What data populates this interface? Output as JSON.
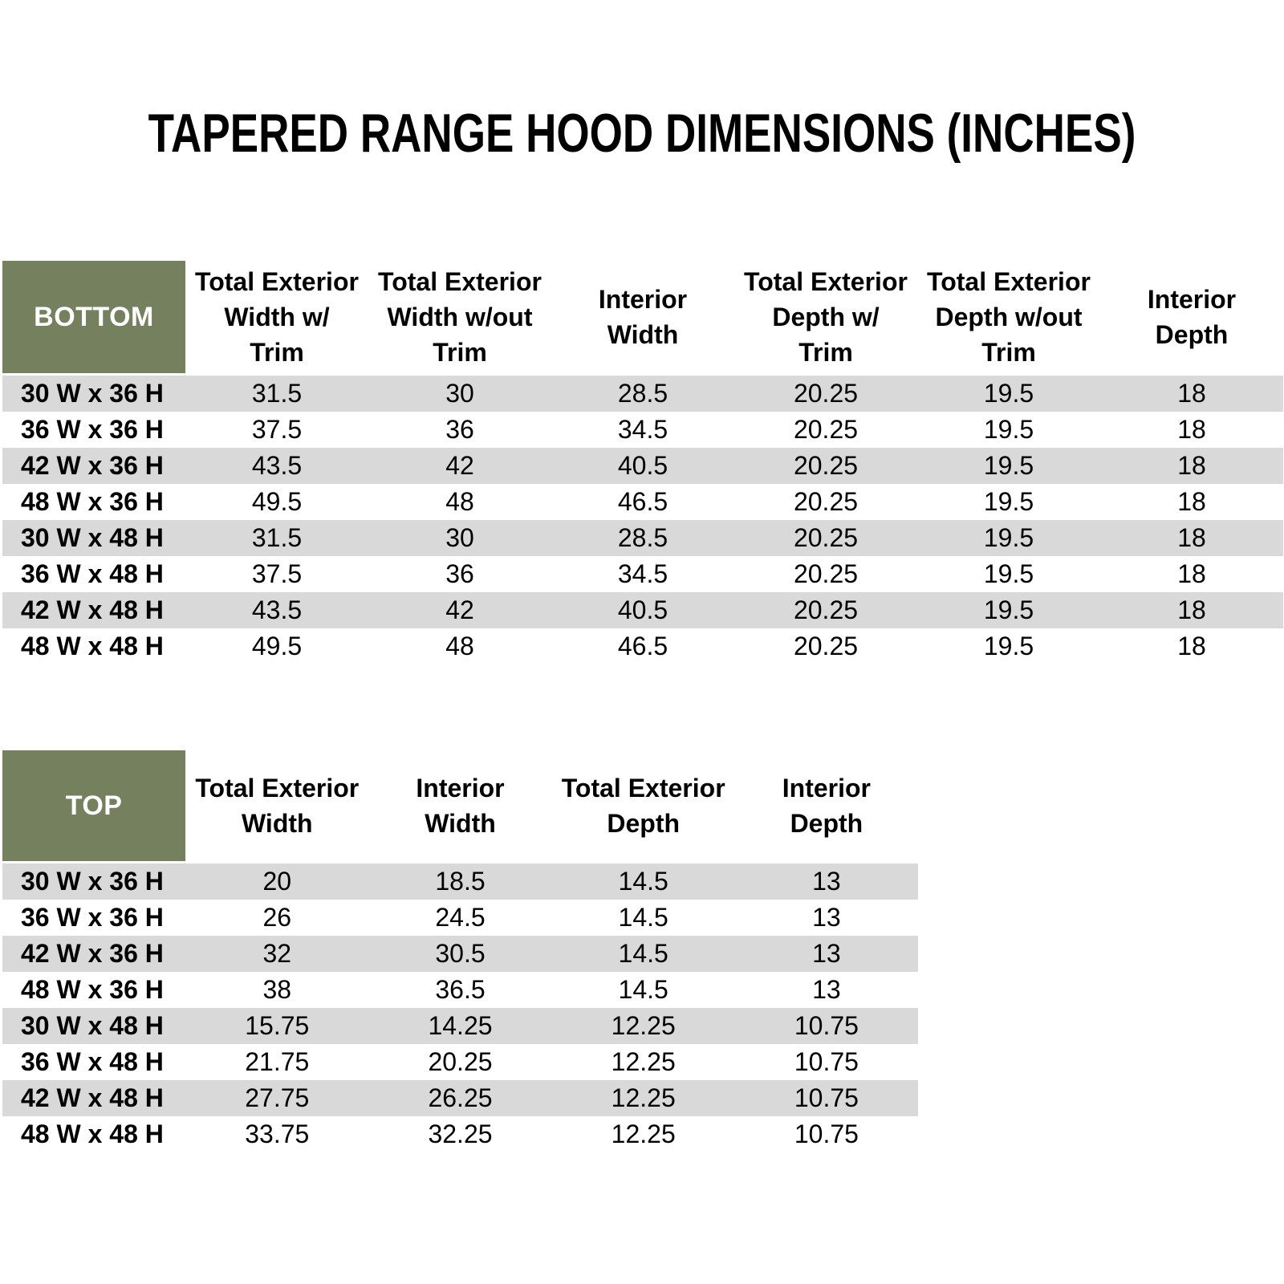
{
  "page_title": "TAPERED RANGE HOOD DIMENSIONS (INCHES)",
  "colors": {
    "header_olive": "#75805F",
    "stripe_gray": "#D9D9D9",
    "text_black": "#000000",
    "header_text_white": "#FFFFFF"
  },
  "bottom_table": {
    "corner_label": "BOTTOM",
    "column_headers": [
      [
        "Total Exterior",
        "Width w/",
        "Trim"
      ],
      [
        "Total Exterior",
        "Width w/out",
        "Trim"
      ],
      [
        "Interior",
        "Width"
      ],
      [
        "Total Exterior",
        "Depth w/",
        "Trim"
      ],
      [
        "Total Exterior",
        "Depth w/out",
        "Trim"
      ],
      [
        "Interior",
        "Depth"
      ]
    ],
    "rows": [
      {
        "label": "30 W x 36 H",
        "values": [
          "31.5",
          "30",
          "28.5",
          "20.25",
          "19.5",
          "18"
        ]
      },
      {
        "label": "36 W x 36 H",
        "values": [
          "37.5",
          "36",
          "34.5",
          "20.25",
          "19.5",
          "18"
        ]
      },
      {
        "label": "42 W x 36 H",
        "values": [
          "43.5",
          "42",
          "40.5",
          "20.25",
          "19.5",
          "18"
        ]
      },
      {
        "label": "48 W x 36 H",
        "values": [
          "49.5",
          "48",
          "46.5",
          "20.25",
          "19.5",
          "18"
        ]
      },
      {
        "label": "30 W x 48 H",
        "values": [
          "31.5",
          "30",
          "28.5",
          "20.25",
          "19.5",
          "18"
        ]
      },
      {
        "label": "36 W x 48 H",
        "values": [
          "37.5",
          "36",
          "34.5",
          "20.25",
          "19.5",
          "18"
        ]
      },
      {
        "label": "42 W x 48 H",
        "values": [
          "43.5",
          "42",
          "40.5",
          "20.25",
          "19.5",
          "18"
        ]
      },
      {
        "label": "48 W x 48 H",
        "values": [
          "49.5",
          "48",
          "46.5",
          "20.25",
          "19.5",
          "18"
        ]
      }
    ]
  },
  "top_table": {
    "corner_label": "TOP",
    "column_headers": [
      [
        "Total Exterior",
        "Width"
      ],
      [
        "Interior",
        "Width"
      ],
      [
        "Total Exterior",
        "Depth"
      ],
      [
        "Interior",
        "Depth"
      ]
    ],
    "rows": [
      {
        "label": "30 W x 36 H",
        "values": [
          "20",
          "18.5",
          "14.5",
          "13"
        ]
      },
      {
        "label": "36 W x 36 H",
        "values": [
          "26",
          "24.5",
          "14.5",
          "13"
        ]
      },
      {
        "label": "42 W x 36 H",
        "values": [
          "32",
          "30.5",
          "14.5",
          "13"
        ]
      },
      {
        "label": "48 W x 36 H",
        "values": [
          "38",
          "36.5",
          "14.5",
          "13"
        ]
      },
      {
        "label": "30 W x 48 H",
        "values": [
          "15.75",
          "14.25",
          "12.25",
          "10.75"
        ]
      },
      {
        "label": "36 W x 48 H",
        "values": [
          "21.75",
          "20.25",
          "12.25",
          "10.75"
        ]
      },
      {
        "label": "42 W x 48 H",
        "values": [
          "27.75",
          "26.25",
          "12.25",
          "10.75"
        ]
      },
      {
        "label": "48 W x 48 H",
        "values": [
          "33.75",
          "32.25",
          "12.25",
          "10.75"
        ]
      }
    ]
  }
}
